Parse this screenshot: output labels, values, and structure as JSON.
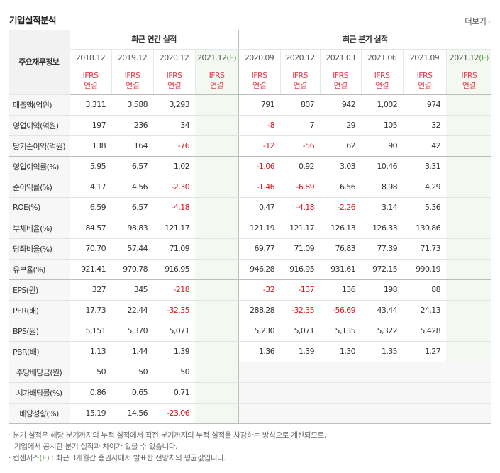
{
  "title": "기업실적분석",
  "more_label": "더보기",
  "row_header_label": "주요재무정보",
  "group_annual": "최근 연간 실적",
  "group_quarter": "최근 분기 실적",
  "annual_periods": [
    {
      "date": "2018.12",
      "estimate": false
    },
    {
      "date": "2019.12",
      "estimate": false
    },
    {
      "date": "2020.12",
      "estimate": false
    },
    {
      "date": "2021.12",
      "estimate": true
    }
  ],
  "quarter_periods": [
    {
      "date": "2020.09",
      "estimate": false
    },
    {
      "date": "2020.12",
      "estimate": false
    },
    {
      "date": "2021.03",
      "estimate": false
    },
    {
      "date": "2021.06",
      "estimate": false
    },
    {
      "date": "2021.09",
      "estimate": false
    },
    {
      "date": "2021.12",
      "estimate": true
    }
  ],
  "estimate_mark": "(E)",
  "ifrs_top": "IFRS",
  "ifrs_bottom": "연결",
  "rows": [
    {
      "label": "매출액(억원)",
      "annual": [
        "3,311",
        "3,588",
        "3,293",
        ""
      ],
      "quarter": [
        "791",
        "807",
        "942",
        "1,002",
        "974",
        ""
      ]
    },
    {
      "label": "영업이익(억원)",
      "annual": [
        "197",
        "236",
        "34",
        ""
      ],
      "quarter": [
        "-8",
        "7",
        "29",
        "105",
        "32",
        ""
      ]
    },
    {
      "label": "당기순이익(억원)",
      "annual": [
        "138",
        "164",
        "-76",
        ""
      ],
      "quarter": [
        "-12",
        "-56",
        "62",
        "90",
        "42",
        ""
      ],
      "group_end": true
    },
    {
      "label": "영업이익률(%)",
      "annual": [
        "5.95",
        "6.57",
        "1.02",
        ""
      ],
      "quarter": [
        "-1.06",
        "0.92",
        "3.03",
        "10.46",
        "3.31",
        ""
      ]
    },
    {
      "label": "순이익률(%)",
      "annual": [
        "4.17",
        "4.56",
        "-2.30",
        ""
      ],
      "quarter": [
        "-1.46",
        "-6.89",
        "6.56",
        "8.98",
        "4.29",
        ""
      ]
    },
    {
      "label": "ROE(%)",
      "annual": [
        "6.59",
        "6.57",
        "-4.18",
        ""
      ],
      "quarter": [
        "0.47",
        "-4.18",
        "-2.26",
        "3.14",
        "5.36",
        ""
      ],
      "group_end": true
    },
    {
      "label": "부채비율(%)",
      "annual": [
        "84.57",
        "98.83",
        "121.17",
        ""
      ],
      "quarter": [
        "121.19",
        "121.17",
        "126.13",
        "126.33",
        "130.86",
        ""
      ]
    },
    {
      "label": "당좌비율(%)",
      "annual": [
        "70.70",
        "57.44",
        "71.09",
        ""
      ],
      "quarter": [
        "69.77",
        "71.09",
        "76.83",
        "77.39",
        "71.73",
        ""
      ]
    },
    {
      "label": "유보율(%)",
      "annual": [
        "921.41",
        "970.78",
        "916.95",
        ""
      ],
      "quarter": [
        "946.28",
        "916.95",
        "931.61",
        "972.15",
        "990.19",
        ""
      ],
      "group_end": true
    },
    {
      "label": "EPS(원)",
      "annual": [
        "327",
        "345",
        "-218",
        ""
      ],
      "quarter": [
        "-32",
        "-137",
        "136",
        "198",
        "88",
        ""
      ]
    },
    {
      "label": "PER(배)",
      "annual": [
        "17.73",
        "22.44",
        "-32.35",
        ""
      ],
      "quarter": [
        "288.28",
        "-32.35",
        "-56.69",
        "43.44",
        "24.13",
        ""
      ]
    },
    {
      "label": "BPS(원)",
      "annual": [
        "5,151",
        "5,370",
        "5,071",
        ""
      ],
      "quarter": [
        "5,230",
        "5,071",
        "5,135",
        "5,322",
        "5,428",
        ""
      ]
    },
    {
      "label": "PBR(배)",
      "annual": [
        "1.13",
        "1.44",
        "1.39",
        ""
      ],
      "quarter": [
        "1.36",
        "1.39",
        "1.30",
        "1.35",
        "1.27",
        ""
      ],
      "group_end": true
    },
    {
      "label": "주당배당금(원)",
      "annual": [
        "50",
        "50",
        "50",
        ""
      ],
      "quarter": null,
      "center_label": true
    },
    {
      "label": "시가배당률(%)",
      "annual": [
        "0.86",
        "0.65",
        "0.71",
        ""
      ],
      "quarter": null,
      "center_label": true
    },
    {
      "label": "배당성향(%)",
      "annual": [
        "15.19",
        "14.56",
        "-23.06",
        ""
      ],
      "quarter": null,
      "center_label": true,
      "last": true
    }
  ],
  "notes": {
    "line1": "분기 실적은 해당 분기까지의 누적 실적에서 직전 분기까지의 누적 실적을 차감하는 방식으로 계산되므로,",
    "line2": "기업에서 공시한 분기 실적과 차이가 있을 수 있습니다.",
    "line3_pre": "컨센서스",
    "line3_mark": "(E)",
    "line3_post": " : 최근 3개월간 증권사에서 발표한 전망치의 평균값입니다."
  }
}
